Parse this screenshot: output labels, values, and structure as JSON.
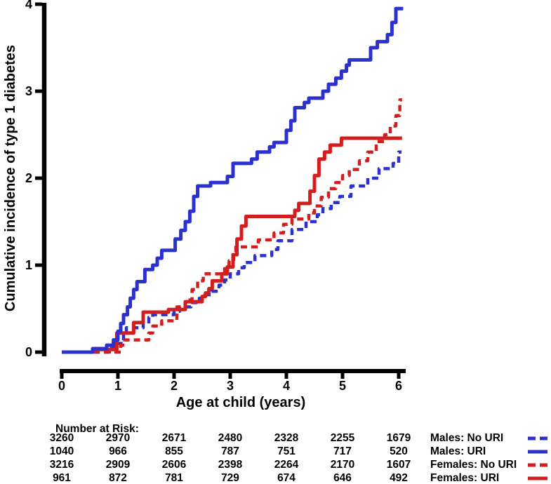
{
  "colors": {
    "blue": "#2b31cc",
    "red": "#d11f1f",
    "axis": "#000000",
    "background": "#ffffff"
  },
  "chart_data": {
    "type": "line",
    "subtype": "step-cumulative-incidence",
    "title": "",
    "xlabel": "Age at child (years)",
    "ylabel": "Cumulative incidence of type 1 diabetes",
    "xlim": [
      0,
      6.1
    ],
    "ylim": [
      0,
      4
    ],
    "xticks": [
      0,
      1,
      2,
      3,
      4,
      5,
      6
    ],
    "yticks": [
      0,
      1,
      2,
      3,
      4
    ],
    "grid": false,
    "legend_position": "bottom-right",
    "series": [
      {
        "name": "Males: No URI",
        "color": "#2b31cc",
        "style": "dashed",
        "steps": [
          [
            0,
            0
          ],
          [
            0.85,
            0.05
          ],
          [
            0.95,
            0.1
          ],
          [
            1.1,
            0.2
          ],
          [
            1.15,
            0.28
          ],
          [
            1.45,
            0.33
          ],
          [
            1.55,
            0.4
          ],
          [
            1.62,
            0.43
          ],
          [
            2.0,
            0.47
          ],
          [
            2.1,
            0.52
          ],
          [
            2.3,
            0.57
          ],
          [
            2.45,
            0.62
          ],
          [
            2.55,
            0.66
          ],
          [
            2.67,
            0.7
          ],
          [
            2.8,
            0.77
          ],
          [
            2.9,
            0.83
          ],
          [
            3.0,
            0.9
          ],
          [
            3.15,
            0.97
          ],
          [
            3.25,
            1.03
          ],
          [
            3.44,
            1.11
          ],
          [
            3.74,
            1.18
          ],
          [
            3.85,
            1.28
          ],
          [
            4.1,
            1.41
          ],
          [
            4.35,
            1.5
          ],
          [
            4.55,
            1.58
          ],
          [
            4.65,
            1.65
          ],
          [
            4.8,
            1.72
          ],
          [
            4.95,
            1.79
          ],
          [
            5.15,
            1.91
          ],
          [
            5.45,
            2.0
          ],
          [
            5.65,
            2.11
          ],
          [
            5.9,
            2.17
          ],
          [
            6.0,
            2.3
          ],
          [
            6.05,
            2.3
          ]
        ]
      },
      {
        "name": "Males: URI",
        "color": "#2b31cc",
        "style": "solid",
        "steps": [
          [
            0,
            0
          ],
          [
            0.55,
            0.04
          ],
          [
            0.8,
            0.08
          ],
          [
            0.92,
            0.14
          ],
          [
            1.0,
            0.24
          ],
          [
            1.05,
            0.33
          ],
          [
            1.1,
            0.43
          ],
          [
            1.17,
            0.52
          ],
          [
            1.22,
            0.62
          ],
          [
            1.28,
            0.72
          ],
          [
            1.34,
            0.81
          ],
          [
            1.48,
            0.95
          ],
          [
            1.62,
            1.0
          ],
          [
            1.7,
            1.08
          ],
          [
            1.78,
            1.17
          ],
          [
            2.02,
            1.3
          ],
          [
            2.12,
            1.4
          ],
          [
            2.2,
            1.5
          ],
          [
            2.28,
            1.62
          ],
          [
            2.35,
            1.79
          ],
          [
            2.42,
            1.91
          ],
          [
            2.65,
            1.95
          ],
          [
            2.95,
            2.02
          ],
          [
            3.05,
            2.17
          ],
          [
            3.38,
            2.22
          ],
          [
            3.48,
            2.3
          ],
          [
            3.7,
            2.36
          ],
          [
            3.78,
            2.41
          ],
          [
            4.0,
            2.55
          ],
          [
            4.08,
            2.66
          ],
          [
            4.15,
            2.81
          ],
          [
            4.32,
            2.87
          ],
          [
            4.4,
            2.92
          ],
          [
            4.65,
            3.0
          ],
          [
            4.75,
            3.08
          ],
          [
            4.88,
            3.15
          ],
          [
            4.98,
            3.23
          ],
          [
            5.07,
            3.3
          ],
          [
            5.12,
            3.36
          ],
          [
            5.5,
            3.5
          ],
          [
            5.62,
            3.57
          ],
          [
            5.8,
            3.65
          ],
          [
            5.88,
            3.79
          ],
          [
            5.95,
            3.95
          ],
          [
            6.08,
            3.95
          ]
        ]
      },
      {
        "name": "Females: No URI",
        "color": "#d11f1f",
        "style": "dashed",
        "steps": [
          [
            0,
            0
          ],
          [
            1.05,
            0.08
          ],
          [
            1.12,
            0.14
          ],
          [
            1.55,
            0.22
          ],
          [
            1.62,
            0.3
          ],
          [
            1.78,
            0.36
          ],
          [
            2.05,
            0.52
          ],
          [
            2.2,
            0.6
          ],
          [
            2.32,
            0.72
          ],
          [
            2.42,
            0.82
          ],
          [
            2.52,
            0.9
          ],
          [
            2.9,
            0.96
          ],
          [
            2.98,
            1.05
          ],
          [
            3.06,
            1.15
          ],
          [
            3.1,
            1.21
          ],
          [
            3.5,
            1.29
          ],
          [
            3.78,
            1.37
          ],
          [
            3.95,
            1.47
          ],
          [
            4.1,
            1.53
          ],
          [
            4.4,
            1.6
          ],
          [
            4.5,
            1.68
          ],
          [
            4.62,
            1.78
          ],
          [
            4.75,
            1.88
          ],
          [
            4.88,
            1.95
          ],
          [
            5.0,
            2.03
          ],
          [
            5.12,
            2.1
          ],
          [
            5.3,
            2.2
          ],
          [
            5.45,
            2.3
          ],
          [
            5.6,
            2.42
          ],
          [
            5.75,
            2.5
          ],
          [
            5.85,
            2.6
          ],
          [
            5.95,
            2.72
          ],
          [
            6.02,
            2.9
          ],
          [
            6.06,
            2.9
          ]
        ]
      },
      {
        "name": "Females: URI",
        "color": "#d11f1f",
        "style": "solid",
        "steps": [
          [
            0,
            0
          ],
          [
            0.55,
            0.03
          ],
          [
            0.98,
            0.22
          ],
          [
            1.28,
            0.34
          ],
          [
            1.45,
            0.46
          ],
          [
            1.9,
            0.49
          ],
          [
            2.2,
            0.58
          ],
          [
            2.5,
            0.64
          ],
          [
            2.56,
            0.68
          ],
          [
            2.62,
            0.73
          ],
          [
            2.68,
            0.82
          ],
          [
            2.85,
            0.9
          ],
          [
            2.95,
            0.98
          ],
          [
            3.05,
            1.12
          ],
          [
            3.12,
            1.3
          ],
          [
            3.2,
            1.45
          ],
          [
            3.28,
            1.56
          ],
          [
            4.15,
            1.63
          ],
          [
            4.22,
            1.71
          ],
          [
            4.42,
            1.85
          ],
          [
            4.5,
            2.03
          ],
          [
            4.58,
            2.22
          ],
          [
            4.68,
            2.3
          ],
          [
            4.78,
            2.38
          ],
          [
            4.98,
            2.46
          ],
          [
            6.06,
            2.46
          ]
        ]
      }
    ]
  },
  "risk_table": {
    "label": "Number at Risk:",
    "ages": [
      0,
      1,
      2,
      3,
      4,
      5,
      6
    ],
    "rows": [
      {
        "name": "Males: No URI",
        "style": "dashed",
        "color": "#2b31cc",
        "values": [
          "3260",
          "2970",
          "2671",
          "2480",
          "2328",
          "2255",
          "1679"
        ]
      },
      {
        "name": "Males: URI",
        "style": "solid",
        "color": "#2b31cc",
        "values": [
          "1040",
          "966",
          "855",
          "787",
          "751",
          "717",
          "520"
        ]
      },
      {
        "name": "Females: No URI",
        "style": "dashed",
        "color": "#d11f1f",
        "values": [
          "3216",
          "2909",
          "2606",
          "2398",
          "2264",
          "2170",
          "1607"
        ]
      },
      {
        "name": "Females: URI",
        "style": "solid",
        "color": "#d11f1f",
        "values": [
          "961",
          "872",
          "781",
          "729",
          "674",
          "646",
          "492"
        ]
      }
    ]
  }
}
